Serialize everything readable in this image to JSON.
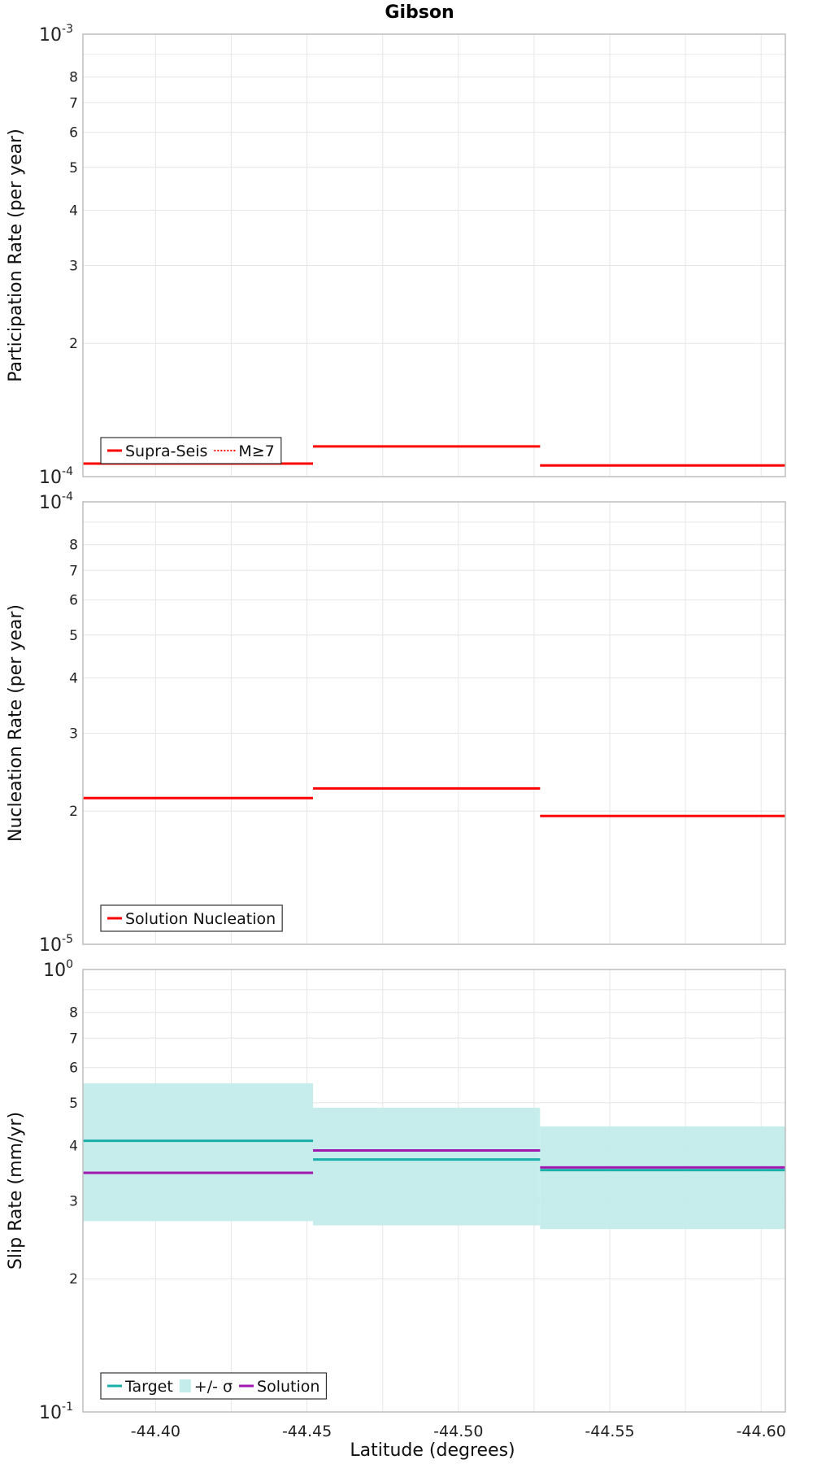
{
  "chart_data": {
    "title": "Gibson",
    "xlabel": "Latitude (degrees)",
    "x_ticks": [
      "-44.40",
      "-44.45",
      "-44.50",
      "-44.55",
      "-44.60"
    ],
    "x_tick_values": [
      -44.4,
      -44.45,
      -44.5,
      -44.55,
      -44.6
    ],
    "xlim": [
      -44.376,
      -44.608
    ],
    "x_axis_reversed": true,
    "segment_edges": [
      -44.376,
      -44.452,
      -44.527,
      -44.608
    ],
    "panels": [
      {
        "type": "line",
        "ylabel": "Participation Rate (per year)",
        "yscale": "log",
        "ylim": [
          0.0001,
          0.001
        ],
        "y_tick_labels": [
          "10-4",
          "2",
          "3",
          "4",
          "5",
          "6",
          "7",
          "8",
          "10-3"
        ],
        "grid": true,
        "legend_location": "bottom-left",
        "series": [
          {
            "name": "Supra-Seis",
            "style": "solid",
            "color": "#ff0000",
            "values": [
              0.000107,
              0.000117,
              0.000106
            ]
          },
          {
            "name": "M≥7",
            "style": "dotted",
            "color": "#ff0000",
            "values": [
              0.000107,
              0.000117,
              0.000106
            ]
          }
        ]
      },
      {
        "type": "line",
        "ylabel": "Nucleation Rate (per year)",
        "yscale": "log",
        "ylim": [
          1e-05,
          0.0001
        ],
        "y_tick_labels": [
          "10-5",
          "2",
          "3",
          "4",
          "5",
          "6",
          "7",
          "8",
          "10-4"
        ],
        "grid": true,
        "legend_location": "bottom-left",
        "series": [
          {
            "name": "Solution Nucleation",
            "style": "solid",
            "color": "#ff0000",
            "values": [
              2.14e-05,
              2.25e-05,
              1.95e-05
            ]
          }
        ]
      },
      {
        "type": "line",
        "ylabel": "Slip Rate (mm/yr)",
        "yscale": "log",
        "ylim": [
          0.1,
          1
        ],
        "y_tick_labels": [
          "10-1",
          "2",
          "3",
          "4",
          "5",
          "6",
          "7",
          "8",
          "100"
        ],
        "grid": true,
        "legend_location": "bottom-left",
        "series": [
          {
            "name": "Target",
            "style": "solid",
            "color": "#1aafaa",
            "values": [
              0.41,
              0.372,
              0.352
            ]
          },
          {
            "name": "+/- σ",
            "style": "band",
            "color": "#c3ecea",
            "lower": [
              0.27,
              0.264,
              0.259
            ],
            "upper": [
              0.553,
              0.487,
              0.442
            ]
          },
          {
            "name": "Solution",
            "style": "solid",
            "color": "#a01ab0",
            "values": [
              0.347,
              0.39,
              0.357
            ]
          }
        ]
      }
    ]
  }
}
